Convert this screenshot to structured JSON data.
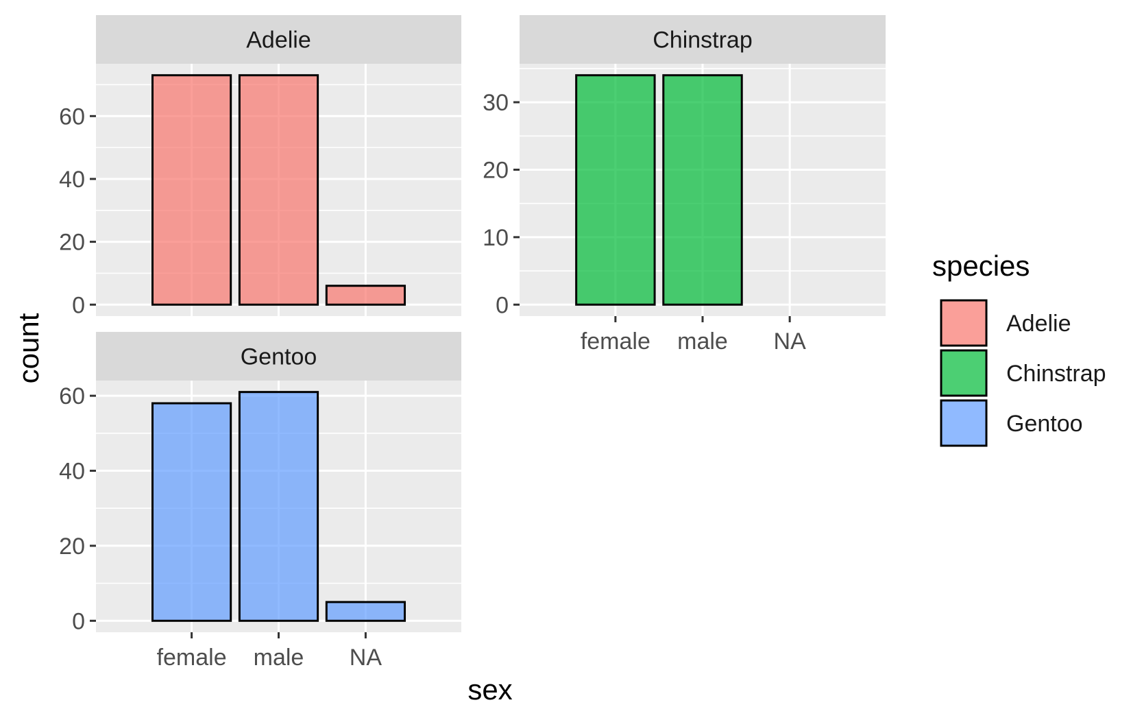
{
  "chart_data": {
    "type": "bar",
    "layout": "faceted",
    "xlabel": "sex",
    "ylabel": "count",
    "categories": [
      "female",
      "male",
      "NA"
    ],
    "legend": {
      "title": "species",
      "position": "right",
      "entries": [
        {
          "label": "Adelie",
          "color": "#f8766d"
        },
        {
          "label": "Chinstrap",
          "color": "#00ba38"
        },
        {
          "label": "Gentoo",
          "color": "#619cff"
        }
      ]
    },
    "facets": [
      {
        "name": "Adelie",
        "color": "#f8766d",
        "values": [
          73,
          73,
          6
        ],
        "ylim": [
          -3.65,
          76.65
        ],
        "yticks": [
          0,
          20,
          40,
          60
        ],
        "yminor": [
          10,
          30,
          50,
          70
        ]
      },
      {
        "name": "Chinstrap",
        "color": "#00ba38",
        "values": [
          34,
          34,
          0
        ],
        "ylim": [
          -1.7,
          35.7
        ],
        "yticks": [
          0,
          10,
          20,
          30
        ],
        "yminor": [
          5,
          15,
          25,
          35
        ]
      },
      {
        "name": "Gentoo",
        "color": "#619cff",
        "values": [
          58,
          61,
          5
        ],
        "ylim": [
          -3.05,
          64.05
        ],
        "yticks": [
          0,
          20,
          40,
          60
        ],
        "yminor": [
          10,
          30,
          50
        ]
      }
    ],
    "grid": true,
    "bar_alpha": 0.7
  }
}
